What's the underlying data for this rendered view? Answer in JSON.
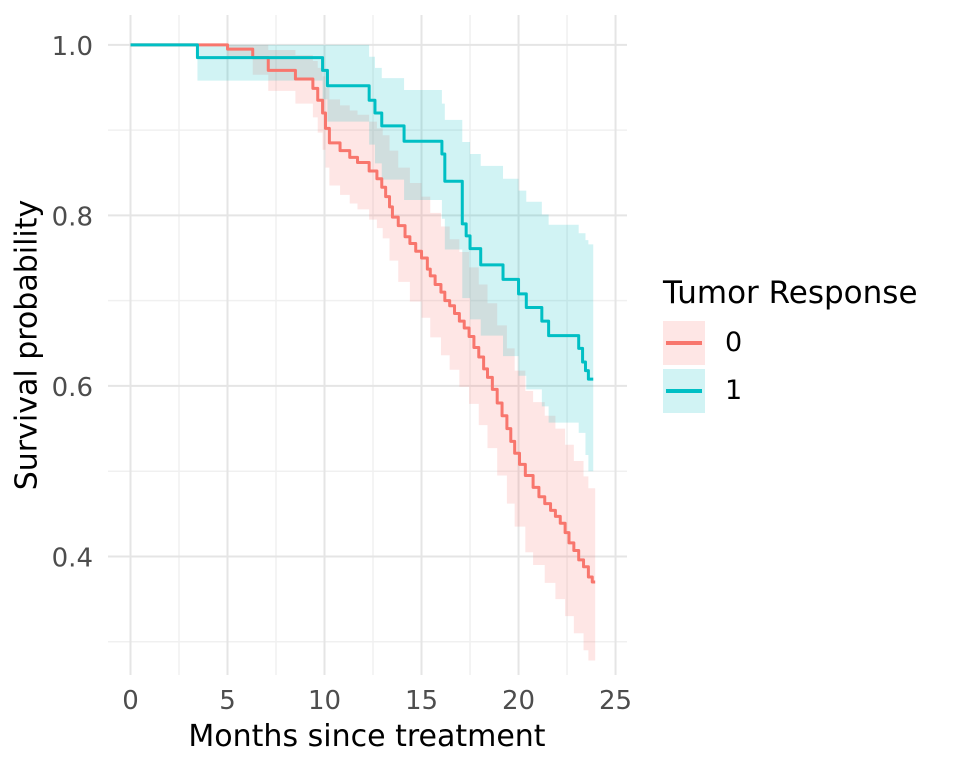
{
  "chart_data": {
    "type": "line",
    "subtype": "kaplan-meier-step-with-ci",
    "title": "",
    "xlabel": "Months since treatment",
    "ylabel": "Survival probability",
    "grid": true,
    "legend": {
      "title": "Tumor Response",
      "position": "right",
      "entries": [
        {
          "label": "0",
          "color": "#F8766D",
          "fill": "rgba(248,118,109,0.18)"
        },
        {
          "label": "1",
          "color": "#00BFC4",
          "fill": "rgba(0,191,196,0.18)"
        }
      ]
    },
    "x_ticks": [
      0,
      5,
      10,
      15,
      20,
      25
    ],
    "x_minor_ticks": [
      2.5,
      7.5,
      12.5,
      17.5,
      22.5
    ],
    "y_ticks": [
      0.4,
      0.6,
      0.8,
      1.0
    ],
    "y_minor_ticks": [
      0.3,
      0.5,
      0.7,
      0.9
    ],
    "xlim": [
      -1.16,
      25.59
    ],
    "ylim": [
      0.261,
      1.035
    ],
    "series": [
      {
        "name": "0",
        "color": "#F8766D",
        "fill": "rgba(248,118,109,0.18)",
        "start": [
          0,
          1.0
        ],
        "end_x": 23.95,
        "steps": [
          [
            5.0,
            0.995
          ],
          [
            6.3,
            0.985
          ],
          [
            7.1,
            0.97
          ],
          [
            8.5,
            0.96
          ],
          [
            9.4,
            0.949
          ],
          [
            9.65,
            0.935
          ],
          [
            9.9,
            0.92
          ],
          [
            10.05,
            0.902
          ],
          [
            10.25,
            0.885
          ],
          [
            10.8,
            0.876
          ],
          [
            11.3,
            0.868
          ],
          [
            11.7,
            0.862
          ],
          [
            12.3,
            0.852
          ],
          [
            12.7,
            0.843
          ],
          [
            12.95,
            0.833
          ],
          [
            13.15,
            0.822
          ],
          [
            13.35,
            0.81
          ],
          [
            13.5,
            0.798
          ],
          [
            13.8,
            0.788
          ],
          [
            14.15,
            0.775
          ],
          [
            14.4,
            0.767
          ],
          [
            14.7,
            0.758
          ],
          [
            15.0,
            0.75
          ],
          [
            15.3,
            0.737
          ],
          [
            15.45,
            0.729
          ],
          [
            15.7,
            0.719
          ],
          [
            16.0,
            0.71
          ],
          [
            16.2,
            0.7
          ],
          [
            16.45,
            0.694
          ],
          [
            16.7,
            0.685
          ],
          [
            16.95,
            0.676
          ],
          [
            17.2,
            0.668
          ],
          [
            17.45,
            0.658
          ],
          [
            17.7,
            0.645
          ],
          [
            17.95,
            0.634
          ],
          [
            18.2,
            0.62
          ],
          [
            18.4,
            0.61
          ],
          [
            18.65,
            0.596
          ],
          [
            18.9,
            0.58
          ],
          [
            19.15,
            0.565
          ],
          [
            19.4,
            0.55
          ],
          [
            19.6,
            0.535
          ],
          [
            19.8,
            0.521
          ],
          [
            20.05,
            0.508
          ],
          [
            20.35,
            0.495
          ],
          [
            20.75,
            0.481
          ],
          [
            21.05,
            0.47
          ],
          [
            21.35,
            0.462
          ],
          [
            21.65,
            0.454
          ],
          [
            21.9,
            0.447
          ],
          [
            22.15,
            0.439
          ],
          [
            22.4,
            0.428
          ],
          [
            22.6,
            0.416
          ],
          [
            22.85,
            0.407
          ],
          [
            23.1,
            0.396
          ],
          [
            23.35,
            0.388
          ],
          [
            23.6,
            0.376
          ],
          [
            23.8,
            0.37
          ]
        ],
        "ci": [
          [
            5.0,
            1.0,
            0.986
          ],
          [
            6.3,
            1.0,
            0.965
          ],
          [
            7.1,
            0.994,
            0.946
          ],
          [
            8.5,
            0.988,
            0.931
          ],
          [
            9.4,
            0.981,
            0.915
          ],
          [
            9.65,
            0.973,
            0.897
          ],
          [
            9.9,
            0.963,
            0.877
          ],
          [
            10.05,
            0.95,
            0.856
          ],
          [
            10.25,
            0.936,
            0.835
          ],
          [
            10.8,
            0.929,
            0.824
          ],
          [
            11.3,
            0.923,
            0.814
          ],
          [
            11.7,
            0.918,
            0.807
          ],
          [
            12.3,
            0.91,
            0.795
          ],
          [
            12.7,
            0.902,
            0.785
          ],
          [
            13.0,
            0.894,
            0.773
          ],
          [
            13.35,
            0.876,
            0.747
          ],
          [
            13.8,
            0.856,
            0.722
          ],
          [
            14.4,
            0.838,
            0.699
          ],
          [
            15.0,
            0.822,
            0.68
          ],
          [
            15.45,
            0.803,
            0.657
          ],
          [
            16.0,
            0.787,
            0.636
          ],
          [
            16.45,
            0.772,
            0.619
          ],
          [
            16.95,
            0.757,
            0.599
          ],
          [
            17.45,
            0.739,
            0.579
          ],
          [
            17.95,
            0.719,
            0.554
          ],
          [
            18.4,
            0.697,
            0.527
          ],
          [
            18.9,
            0.671,
            0.495
          ],
          [
            19.4,
            0.644,
            0.462
          ],
          [
            19.8,
            0.618,
            0.435
          ],
          [
            20.35,
            0.594,
            0.405
          ],
          [
            20.75,
            0.581,
            0.39
          ],
          [
            21.35,
            0.565,
            0.369
          ],
          [
            21.9,
            0.55,
            0.35
          ],
          [
            22.4,
            0.531,
            0.33
          ],
          [
            22.85,
            0.512,
            0.31
          ],
          [
            23.35,
            0.494,
            0.29
          ],
          [
            23.6,
            0.48,
            0.278
          ]
        ]
      },
      {
        "name": "1",
        "color": "#00BFC4",
        "fill": "rgba(0,191,196,0.18)",
        "start": [
          0,
          1.0
        ],
        "end_x": 23.85,
        "steps": [
          [
            3.45,
            0.985
          ],
          [
            9.9,
            0.97
          ],
          [
            10.15,
            0.952
          ],
          [
            12.3,
            0.935
          ],
          [
            12.6,
            0.92
          ],
          [
            12.95,
            0.905
          ],
          [
            14.1,
            0.887
          ],
          [
            16.05,
            0.872
          ],
          [
            16.2,
            0.84
          ],
          [
            17.1,
            0.79
          ],
          [
            17.3,
            0.776
          ],
          [
            17.5,
            0.761
          ],
          [
            18.05,
            0.742
          ],
          [
            19.2,
            0.725
          ],
          [
            20.0,
            0.708
          ],
          [
            20.4,
            0.692
          ],
          [
            21.2,
            0.676
          ],
          [
            21.55,
            0.659
          ],
          [
            23.1,
            0.644
          ],
          [
            23.3,
            0.628
          ],
          [
            23.45,
            0.618
          ],
          [
            23.6,
            0.608
          ]
        ],
        "ci": [
          [
            3.45,
            1.0,
            0.958
          ],
          [
            9.9,
            1.0,
            0.936
          ],
          [
            10.15,
            1.0,
            0.91
          ],
          [
            12.3,
            0.986,
            0.883
          ],
          [
            12.6,
            0.973,
            0.861
          ],
          [
            12.95,
            0.961,
            0.842
          ],
          [
            14.1,
            0.947,
            0.818
          ],
          [
            16.05,
            0.931,
            0.796
          ],
          [
            16.2,
            0.912,
            0.76
          ],
          [
            17.1,
            0.886,
            0.703
          ],
          [
            17.5,
            0.872,
            0.678
          ],
          [
            18.05,
            0.858,
            0.659
          ],
          [
            19.2,
            0.843,
            0.635
          ],
          [
            20.0,
            0.829,
            0.612
          ],
          [
            20.4,
            0.816,
            0.596
          ],
          [
            21.2,
            0.801,
            0.576
          ],
          [
            21.55,
            0.789,
            0.557
          ],
          [
            23.1,
            0.779,
            0.545
          ],
          [
            23.45,
            0.771,
            0.519
          ],
          [
            23.6,
            0.766,
            0.5
          ]
        ]
      }
    ]
  }
}
